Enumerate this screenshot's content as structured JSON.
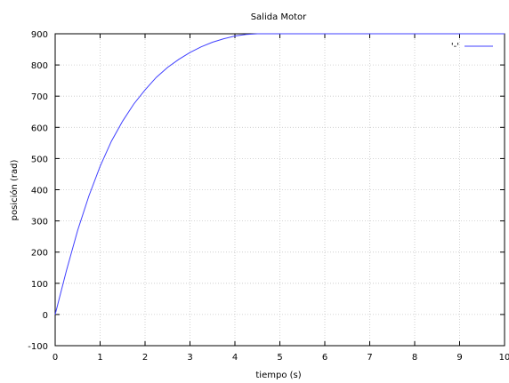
{
  "chart_data": {
    "type": "line",
    "title": "Salida Motor",
    "xlabel": "tiempo (s)",
    "ylabel": "posición (rad)",
    "xlim": [
      0,
      10
    ],
    "ylim": [
      -100,
      900
    ],
    "xticks": [
      0,
      1,
      2,
      3,
      4,
      5,
      6,
      7,
      8,
      9,
      10
    ],
    "xtick_labels": [
      "0",
      "1",
      "2",
      "3",
      "4",
      "5",
      "6",
      "7",
      "8",
      "9",
      "10"
    ],
    "yticks": [
      -100,
      0,
      100,
      200,
      300,
      400,
      500,
      600,
      700,
      800,
      900
    ],
    "ytick_labels": [
      "-100",
      "0",
      "100",
      "200",
      "300",
      "400",
      "500",
      "600",
      "700",
      "800",
      "900"
    ],
    "grid": true,
    "legend_position": "top-right",
    "series": [
      {
        "name": "'-'",
        "color": "#4040ff",
        "x": [
          0,
          0.25,
          0.5,
          0.75,
          1.0,
          1.25,
          1.5,
          1.75,
          2.0,
          2.25,
          2.5,
          2.75,
          3.0,
          3.25,
          3.5,
          3.75,
          4.0,
          4.25,
          4.5,
          5.0,
          6.0,
          7.0,
          8.0,
          9.0,
          10.0
        ],
        "y": [
          0,
          140,
          270,
          380,
          475,
          555,
          620,
          675,
          720,
          760,
          792,
          818,
          840,
          858,
          873,
          884,
          893,
          898,
          900,
          900,
          900,
          900,
          900,
          900,
          900
        ]
      }
    ]
  }
}
